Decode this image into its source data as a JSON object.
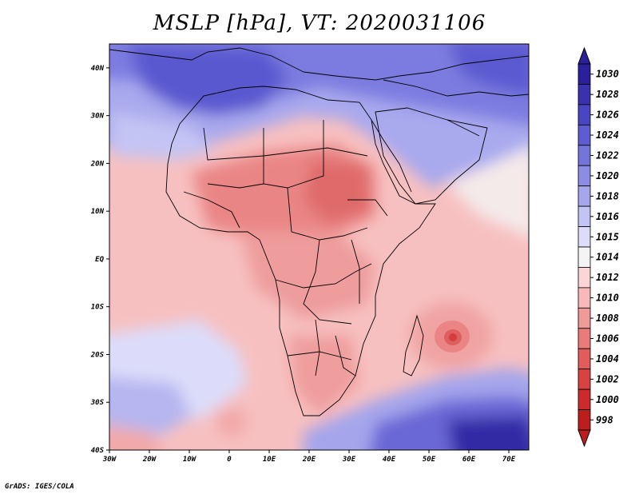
{
  "title": "MSLP [hPa], VT: 2020031106",
  "credit": "GrADS: IGES/COLA",
  "map": {
    "lat_labels": [
      "40N",
      "30N",
      "20N",
      "10N",
      "EQ",
      "10S",
      "20S",
      "30S",
      "40S"
    ],
    "lon_labels": [
      "30W",
      "20W",
      "10W",
      "0",
      "10E",
      "20E",
      "30E",
      "40E",
      "50E",
      "60E",
      "70E"
    ],
    "lat_range": [
      -40,
      45
    ],
    "lon_range": [
      -30,
      75
    ],
    "cyclone_center": {
      "lon": 56,
      "lat": -17,
      "min_hpa": 1004
    }
  },
  "colorbar": {
    "levels": [
      "1030",
      "1028",
      "1026",
      "1024",
      "1022",
      "1020",
      "1018",
      "1016",
      "1015",
      "1014",
      "1012",
      "1010",
      "1008",
      "1006",
      "1004",
      "1002",
      "1000",
      "998"
    ],
    "colors": [
      "#2b1f9c",
      "#3a32ad",
      "#4a46c2",
      "#5e5cd0",
      "#7474db",
      "#8c8ce4",
      "#a6a6ec",
      "#c3c3f4",
      "#dddcfa",
      "#f4f4f4",
      "#fcd6d6",
      "#f7b9b9",
      "#f19a9a",
      "#e97b7b",
      "#e25c5c",
      "#d94242",
      "#cc2b2b",
      "#bc1e1e"
    ]
  }
}
